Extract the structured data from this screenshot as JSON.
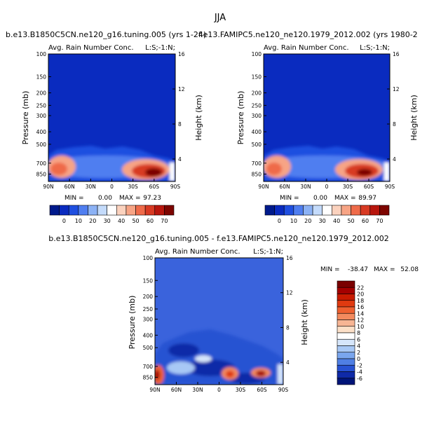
{
  "page": {
    "title": "JJA",
    "left_title": "b.e13.B1850C5CN.ne120_g16.tuning.005 (yrs 1-24)",
    "right_title": "f.e13.FAMIPC5.ne120_ne120.1979_2012.002 (yrs 1980-2",
    "diff_title": "b.e13.B1850C5CN.ne120_g16.tuning.005 - f.e13.FAMIPC5.ne120_ne120.1979_2012.002"
  },
  "chart_data": [
    {
      "type": "heatmap",
      "id": "left",
      "subtitle": "Avg. Rain Number Conc.",
      "corner_label": "L:S;-1:N;",
      "xlabel": "",
      "ylabel": "Pressure (mb)",
      "y2label": "Height (km)",
      "x_ticks": [
        "90N",
        "60N",
        "30N",
        "0",
        "30S",
        "60S",
        "90S"
      ],
      "y_ticks": [
        "100",
        "150",
        "200",
        "250",
        "300",
        "400",
        "500",
        "700",
        "850"
      ],
      "y2_ticks": [
        "4",
        "8",
        "12",
        "16"
      ],
      "stats": {
        "min_label": "MIN =",
        "min": "0.00",
        "max_label": "MAX =",
        "max": "97.23"
      },
      "colorbar": {
        "labels": [
          "0",
          "10",
          "20",
          "30",
          "40",
          "50",
          "60",
          "70"
        ]
      },
      "background": "#0a2bbf"
    },
    {
      "type": "heatmap",
      "id": "right",
      "subtitle": "Avg. Rain Number Conc.",
      "corner_label": "L:S;-1:N;",
      "xlabel": "",
      "ylabel": "Pressure (mb)",
      "y2label": "Height (km)",
      "x_ticks": [
        "90N",
        "60N",
        "30N",
        "0",
        "30S",
        "60S",
        "90S"
      ],
      "y_ticks": [
        "100",
        "150",
        "200",
        "250",
        "300",
        "400",
        "500",
        "700",
        "850"
      ],
      "y2_ticks": [
        "4",
        "8",
        "12",
        "16"
      ],
      "stats": {
        "min_label": "MIN =",
        "min": "0.00",
        "max_label": "MAX =",
        "max": "89.97"
      },
      "colorbar": {
        "labels": [
          "0",
          "10",
          "20",
          "30",
          "40",
          "50",
          "60",
          "70"
        ]
      },
      "background": "#0a2bbf"
    },
    {
      "type": "heatmap",
      "id": "diff",
      "subtitle": "Avg. Rain Number Conc.",
      "corner_label": "L:S;-1:N;",
      "xlabel": "",
      "ylabel": "Pressure (mb)",
      "y2label": "Height (km)",
      "x_ticks": [
        "90N",
        "60N",
        "30N",
        "0",
        "30S",
        "60S",
        "90S"
      ],
      "y_ticks": [
        "100",
        "150",
        "200",
        "250",
        "300",
        "400",
        "500",
        "700",
        "850"
      ],
      "y2_ticks": [
        "4",
        "8",
        "12",
        "16"
      ],
      "stats": {
        "min_label": "MIN =",
        "min": "-38.47",
        "max_label": "MAX =",
        "max": "52.08"
      },
      "colorbar": {
        "labels": [
          "22",
          "20",
          "18",
          "16",
          "14",
          "12",
          "10",
          "8",
          "6",
          "4",
          "2",
          "0",
          "-2",
          "-4",
          "-6"
        ]
      },
      "background": "#3a63dc"
    }
  ],
  "colors": {
    "seq": [
      "#001a8c",
      "#0a2bbf",
      "#1f4fe0",
      "#4f7ef0",
      "#8cb2f5",
      "#c4dbfb",
      "#ffffff",
      "#fbd2be",
      "#f7a485",
      "#ef6b4a",
      "#d83a23",
      "#b8160d",
      "#7d0500"
    ],
    "diff": [
      "#7a0000",
      "#a40000",
      "#c81a00",
      "#e03a10",
      "#ee6030",
      "#f38a5e",
      "#f7b594",
      "#fce0c8",
      "#ffffff",
      "#d6e6fb",
      "#a8c8f5",
      "#7aa6ee",
      "#4f7fe4",
      "#2752d2",
      "#0f2aa8",
      "#001478"
    ]
  }
}
